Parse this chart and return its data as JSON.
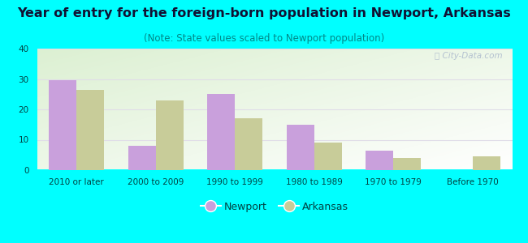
{
  "title": "Year of entry for the foreign-born population in Newport, Arkansas",
  "subtitle": "(Note: State values scaled to Newport population)",
  "categories": [
    "2010 or later",
    "2000 to 2009",
    "1990 to 1999",
    "1980 to 1989",
    "1970 to 1979",
    "Before 1970"
  ],
  "newport_values": [
    29.5,
    8.0,
    25.0,
    15.0,
    6.5,
    0
  ],
  "arkansas_values": [
    26.5,
    23.0,
    17.0,
    9.0,
    4.0,
    4.5
  ],
  "newport_color": "#c9a0dc",
  "arkansas_color": "#c8cc99",
  "background_outer": "#00ffff",
  "title_color": "#111133",
  "subtitle_color": "#008888",
  "tick_color": "#004444",
  "ylim": [
    0,
    40
  ],
  "yticks": [
    0,
    10,
    20,
    30,
    40
  ],
  "bar_width": 0.35,
  "title_fontsize": 11.5,
  "subtitle_fontsize": 8.5,
  "tick_fontsize": 7.5,
  "legend_fontsize": 9
}
